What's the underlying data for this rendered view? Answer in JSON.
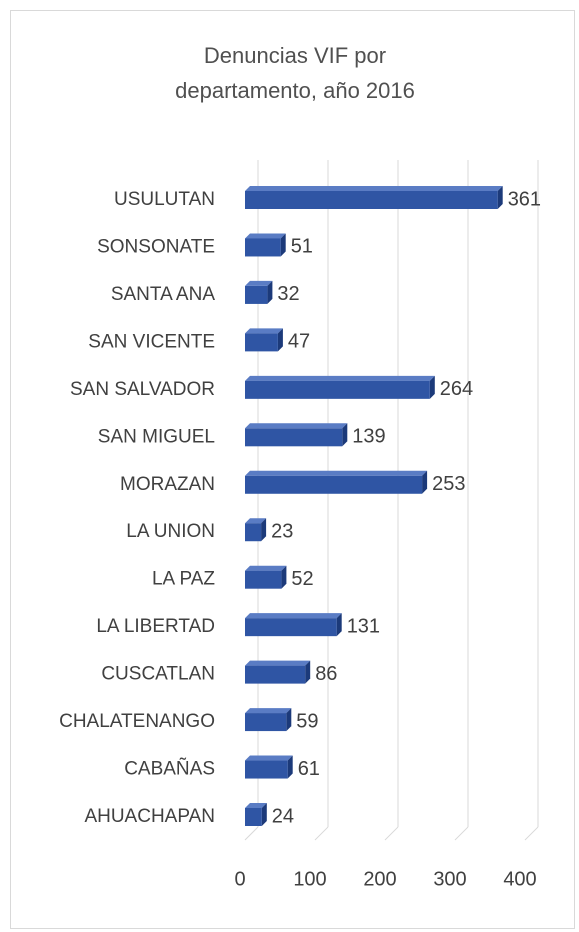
{
  "chart_data": {
    "type": "bar",
    "orientation": "horizontal",
    "title": "Denuncias VIF por departamento, año 2016",
    "categories": [
      "USULUTAN",
      "SONSONATE",
      "SANTA ANA",
      "SAN VICENTE",
      "SAN SALVADOR",
      "SAN MIGUEL",
      "MORAZAN",
      "LA UNION",
      "LA PAZ",
      "LA LIBERTAD",
      "CUSCATLAN",
      "CHALATENANGO",
      "CABAÑAS",
      "AHUACHAPAN"
    ],
    "values": [
      361,
      51,
      32,
      47,
      264,
      139,
      253,
      23,
      52,
      131,
      86,
      59,
      61,
      24
    ],
    "color": "#2f55a4",
    "xlim": [
      0,
      400
    ],
    "xticks": [
      0,
      100,
      200,
      300,
      400
    ],
    "grid": true
  }
}
